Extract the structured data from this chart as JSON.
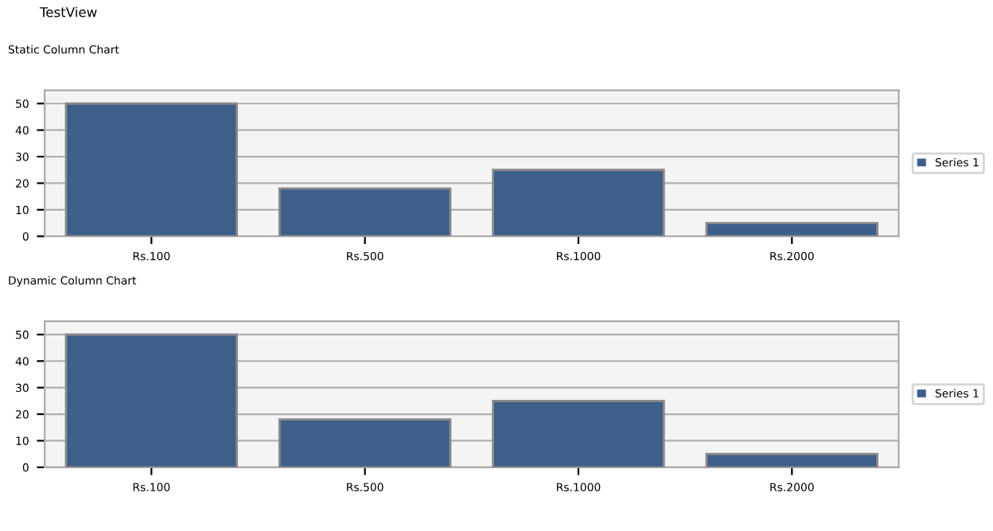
{
  "chart_data": [
    {
      "type": "bar",
      "title": "Static Column Chart",
      "annotations": [
        "TestView"
      ],
      "categories": [
        "Rs.100",
        "Rs.500",
        "Rs.1000",
        "Rs.2000"
      ],
      "series": [
        {
          "name": "Series 1",
          "color": "#3d5f8a",
          "values": [
            50,
            18,
            25,
            5
          ]
        }
      ],
      "ylim": [
        0,
        55
      ],
      "yticks": [
        0,
        10,
        20,
        30,
        40,
        50
      ],
      "grid": "y",
      "legend": "right"
    },
    {
      "type": "bar",
      "title": "Dynamic Column Chart",
      "categories": [
        "Rs.100",
        "Rs.500",
        "Rs.1000",
        "Rs.2000"
      ],
      "series": [
        {
          "name": "Series 1",
          "color": "#3d5f8a",
          "values": [
            50,
            18,
            25,
            5
          ]
        }
      ],
      "ylim": [
        0,
        55
      ],
      "yticks": [
        0,
        10,
        20,
        30,
        40,
        50
      ],
      "grid": "y",
      "legend": "right"
    }
  ]
}
